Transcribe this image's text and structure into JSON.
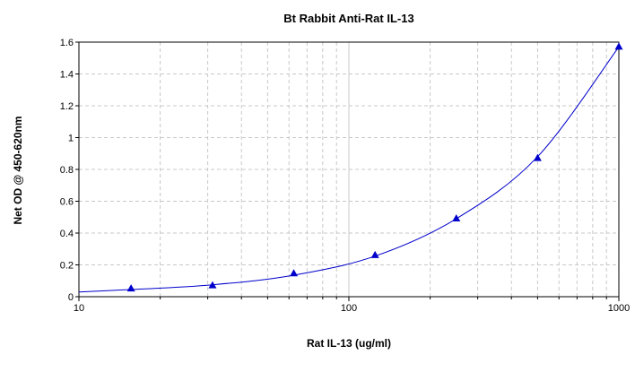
{
  "chart_data": {
    "type": "scatter",
    "title": "Bt Rabbit Anti-Rat IL-13",
    "xlabel": "Rat IL-13 (ug/ml)",
    "ylabel": "Net OD @ 450-620nm",
    "xscale": "log",
    "xlim": [
      10,
      1000
    ],
    "ylim": [
      0,
      1.6
    ],
    "grid": true,
    "x_ticks": [
      {
        "value": 10,
        "label": "10"
      },
      {
        "value": 100,
        "label": "100"
      },
      {
        "value": 1000,
        "label": "1000"
      }
    ],
    "y_ticks": [
      {
        "value": 0,
        "label": "0"
      },
      {
        "value": 0.2,
        "label": "0.2"
      },
      {
        "value": 0.4,
        "label": "0.4"
      },
      {
        "value": 0.6,
        "label": "0.6"
      },
      {
        "value": 0.8,
        "label": "0.8"
      },
      {
        "value": 1,
        "label": "1"
      },
      {
        "value": 1.2,
        "label": "1.2"
      },
      {
        "value": 1.4,
        "label": "1.4"
      },
      {
        "value": 1.6,
        "label": "1.6"
      }
    ],
    "series": [
      {
        "marker": "triangle",
        "color": "#0000cc",
        "x": [
          15.6,
          31.25,
          62.5,
          125,
          250,
          500,
          1000
        ],
        "y": [
          0.05,
          0.07,
          0.145,
          0.26,
          0.49,
          0.87,
          1.57
        ]
      }
    ],
    "fit_curve": {
      "color": "#0000cc",
      "x": [
        10,
        15.6,
        31.25,
        62.5,
        125,
        250,
        500,
        1000
      ],
      "y": [
        0.03,
        0.045,
        0.075,
        0.135,
        0.255,
        0.49,
        0.88,
        1.57
      ]
    },
    "colors": {
      "grid": "#c8c8c8",
      "axis": "#000000",
      "marker": "#0000cc",
      "curve": "#0000cc"
    }
  }
}
